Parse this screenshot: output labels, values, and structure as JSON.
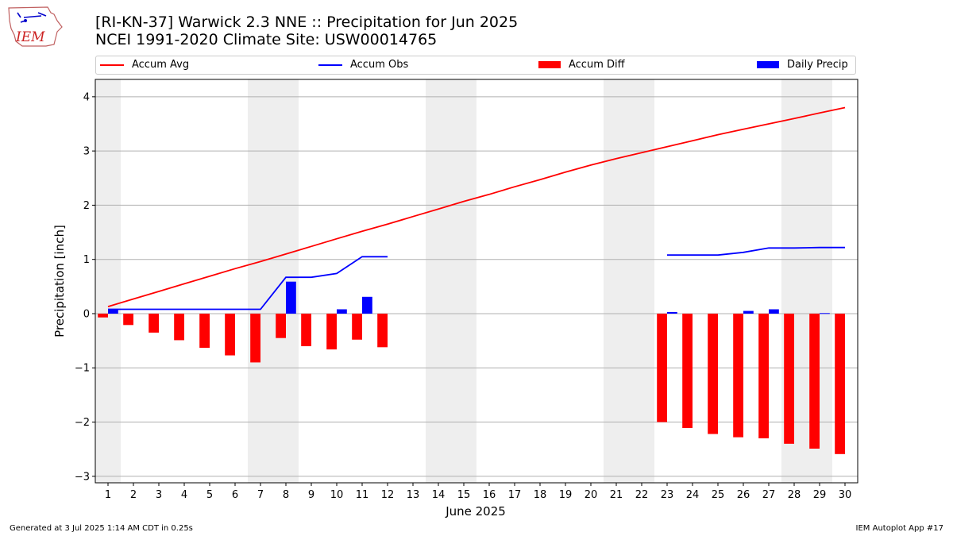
{
  "header": {
    "title_line1": "[RI-KN-37] Warwick 2.3 NNE :: Precipitation for Jun 2025",
    "title_line2": "NCEI 1991-2020 Climate Site: USW00014765",
    "logo_text": "IEM"
  },
  "footer": {
    "left": "Generated at 3 Jul 2025 1:14 AM CDT in 0.25s",
    "right": "IEM Autoplot App #17"
  },
  "colors": {
    "avg": "#ff0000",
    "obs": "#0000ff",
    "diff": "#ff0000",
    "daily": "#0000ff",
    "weekend": "#eeeeee",
    "grid": "#b0b0b0"
  },
  "chart_data": {
    "type": "bar",
    "xlabel": "June 2025",
    "ylabel": "Precipitation [inch]",
    "xlim": [
      0.5,
      30.5
    ],
    "ylim": [
      -3.12,
      4.32
    ],
    "yticks": [
      4,
      3,
      2,
      1,
      0,
      -1,
      -2,
      -3
    ],
    "ytick_labels": [
      "4",
      "3",
      "2",
      "1",
      "0",
      "−1",
      "−2",
      "−3"
    ],
    "days": [
      1,
      2,
      3,
      4,
      5,
      6,
      7,
      8,
      9,
      10,
      11,
      12,
      13,
      14,
      15,
      16,
      17,
      18,
      19,
      20,
      21,
      22,
      23,
      24,
      25,
      26,
      27,
      28,
      29,
      30
    ],
    "weekend_spans": [
      [
        0.5,
        1.5
      ],
      [
        6.5,
        8.5
      ],
      [
        13.5,
        15.5
      ],
      [
        20.5,
        22.5
      ],
      [
        27.5,
        29.5
      ]
    ],
    "grid": true,
    "legend_position": "top",
    "series": [
      {
        "name": "Accum Avg",
        "kind": "line",
        "values": [
          0.13,
          0.27,
          0.41,
          0.55,
          0.69,
          0.83,
          0.96,
          1.1,
          1.24,
          1.38,
          1.52,
          1.65,
          1.79,
          1.93,
          2.07,
          2.2,
          2.34,
          2.47,
          2.61,
          2.74,
          2.86,
          2.97,
          3.08,
          3.19,
          3.3,
          3.4,
          3.5,
          3.6,
          3.7,
          3.8
        ]
      },
      {
        "name": "Accum Obs",
        "kind": "line",
        "values": [
          0.08,
          0.08,
          0.08,
          0.08,
          0.08,
          0.08,
          0.08,
          0.67,
          0.67,
          0.74,
          1.05,
          1.05,
          null,
          null,
          null,
          null,
          null,
          null,
          null,
          null,
          null,
          null,
          1.08,
          1.08,
          1.08,
          1.13,
          1.21,
          1.21,
          1.22,
          1.22
        ]
      },
      {
        "name": "Accum Diff",
        "kind": "bar",
        "values": [
          -0.07,
          -0.21,
          -0.35,
          -0.49,
          -0.63,
          -0.77,
          -0.9,
          -0.45,
          -0.6,
          -0.66,
          -0.48,
          -0.62,
          null,
          null,
          null,
          null,
          null,
          null,
          null,
          null,
          null,
          null,
          -2.0,
          -2.11,
          -2.22,
          -2.28,
          -2.3,
          -2.4,
          -2.49,
          -2.59
        ]
      },
      {
        "name": "Daily Precip",
        "kind": "bar",
        "values": [
          0.08,
          0,
          0,
          0,
          0,
          0,
          0,
          0.59,
          0,
          0.08,
          0.31,
          0,
          null,
          null,
          null,
          null,
          null,
          null,
          null,
          null,
          null,
          null,
          0.03,
          0,
          0,
          0.05,
          0.08,
          0,
          0.01,
          0
        ]
      }
    ]
  }
}
